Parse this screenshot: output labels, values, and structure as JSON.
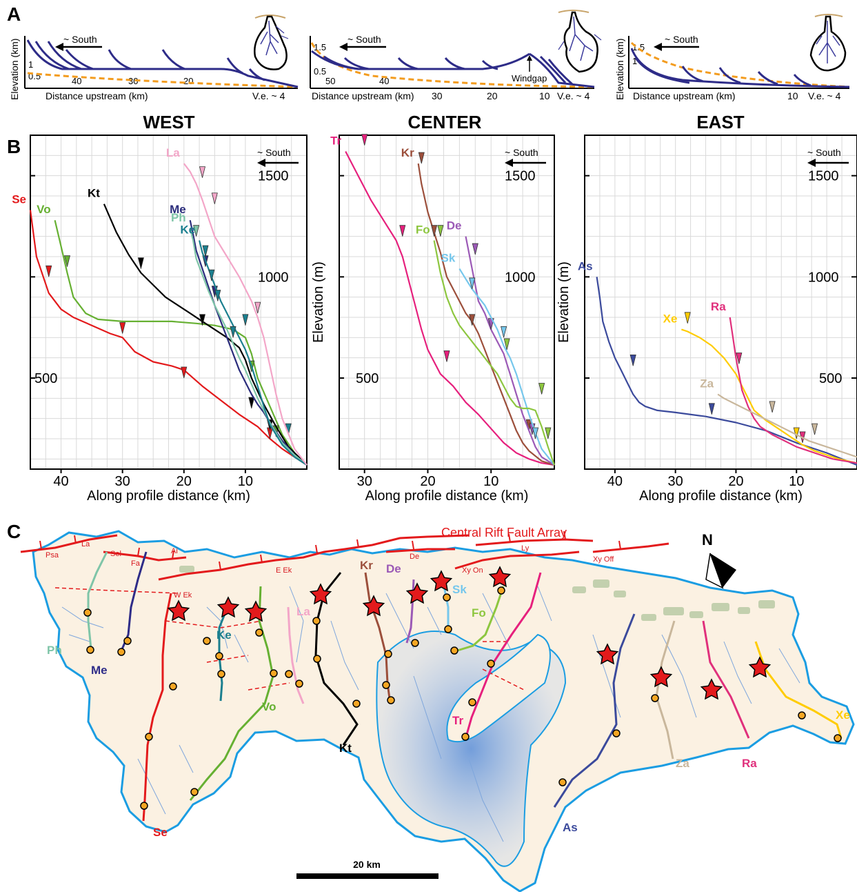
{
  "panel_labels": [
    "A",
    "B",
    "C"
  ],
  "panel_a": [
    {
      "direction_label": "~ South",
      "xlabel": "Distance upstream (km)",
      "ylabel": "Elevation (km)",
      "ve_label": "V.e. ~ 4",
      "x_ticks": [
        "40",
        "30",
        "20"
      ],
      "y_ticks": [
        "0.5",
        "1"
      ],
      "annotation": ""
    },
    {
      "direction_label": "~ South",
      "xlabel": "Distance upstream (km)",
      "ylabel": "",
      "ve_label": "V.e. ~ 4",
      "x_ticks": [
        "50",
        "40",
        "30",
        "20",
        "10"
      ],
      "y_ticks": [
        "0.5",
        "1.5"
      ],
      "annotation": "Windgap"
    },
    {
      "direction_label": "~ South",
      "xlabel": "Distance upstream (km)",
      "ylabel": "Elevation (km)",
      "ve_label": "V.e. ~ 4",
      "x_ticks": [
        "10"
      ],
      "y_ticks": [
        "1",
        "1.5"
      ],
      "annotation": ""
    }
  ],
  "chart_data": [
    {
      "type": "line",
      "title": "WEST",
      "xlabel": "Along profile distance (km)",
      "ylabel": "",
      "xlim": [
        45,
        0
      ],
      "ylim": [
        50,
        1700
      ],
      "x_ticks": [
        40,
        30,
        20,
        10
      ],
      "y_ticks": [
        500,
        1000,
        1500
      ],
      "direction_label": "~ South",
      "series": [
        {
          "name": "Se",
          "color": "#e31a1c",
          "x": [
            45,
            44,
            42,
            40,
            38,
            35,
            32,
            30,
            28,
            25,
            22,
            20,
            17,
            14,
            11,
            8,
            6,
            4,
            2,
            0
          ],
          "y": [
            1330,
            1100,
            920,
            840,
            800,
            760,
            720,
            700,
            630,
            580,
            560,
            540,
            460,
            390,
            320,
            260,
            200,
            150,
            110,
            70
          ],
          "markers": [
            [
              42,
              1000
            ],
            [
              30,
              720
            ],
            [
              20,
              500
            ],
            [
              6,
              200
            ]
          ]
        },
        {
          "name": "Vo",
          "color": "#66b032",
          "x": [
            41,
            40,
            39,
            38,
            36,
            34,
            30,
            26,
            22,
            18,
            15,
            12,
            10,
            9,
            8,
            6,
            4,
            2,
            0
          ],
          "y": [
            1280,
            1150,
            1020,
            900,
            820,
            790,
            780,
            780,
            780,
            770,
            760,
            740,
            700,
            620,
            500,
            360,
            220,
            130,
            70
          ],
          "markers": [
            [
              39,
              1050
            ],
            [
              9,
              530
            ],
            [
              5,
              210
            ]
          ]
        },
        {
          "name": "Kt",
          "color": "#000000",
          "x": [
            33,
            31,
            29,
            27,
            25,
            23,
            21,
            19,
            17,
            15,
            13,
            11,
            10,
            9,
            7,
            5,
            3,
            0
          ],
          "y": [
            1360,
            1220,
            1110,
            1020,
            960,
            900,
            860,
            820,
            780,
            740,
            700,
            650,
            590,
            500,
            370,
            260,
            160,
            70
          ],
          "markers": [
            [
              27,
              1040
            ],
            [
              17,
              760
            ],
            [
              9,
              350
            ],
            [
              6,
              240
            ]
          ]
        },
        {
          "name": "Me",
          "color": "#2b2d7c",
          "x": [
            19,
            18.5,
            18,
            17,
            16,
            15,
            14,
            13,
            12,
            11,
            10,
            9,
            8,
            7,
            6,
            4,
            2,
            0
          ],
          "y": [
            1280,
            1210,
            1130,
            1040,
            950,
            860,
            780,
            700,
            620,
            540,
            480,
            420,
            370,
            330,
            280,
            190,
            120,
            70
          ],
          "markers": [
            [
              16.5,
              1050
            ],
            [
              15,
              900
            ]
          ]
        },
        {
          "name": "Ph",
          "color": "#7fc5a8",
          "x": [
            19,
            18.5,
            18,
            17,
            16,
            15,
            14,
            13,
            12,
            11,
            10,
            9,
            8,
            7,
            6,
            4,
            2,
            0
          ],
          "y": [
            1240,
            1180,
            1090,
            1010,
            930,
            860,
            800,
            740,
            670,
            600,
            540,
            470,
            400,
            340,
            280,
            180,
            120,
            70
          ],
          "markers": [
            [
              18,
              1200
            ]
          ]
        },
        {
          "name": "Ke",
          "color": "#1b7f8f",
          "x": [
            17.5,
            17,
            16,
            15,
            14,
            13,
            12,
            11,
            10,
            9,
            8,
            7,
            6,
            4,
            2,
            0
          ],
          "y": [
            1180,
            1120,
            1040,
            960,
            880,
            820,
            760,
            700,
            640,
            560,
            460,
            360,
            270,
            170,
            110,
            70
          ],
          "markers": [
            [
              16.5,
              1100
            ],
            [
              15.5,
              980
            ],
            [
              14.5,
              880
            ],
            [
              12,
              700
            ],
            [
              10,
              760
            ],
            [
              3,
              220
            ]
          ]
        },
        {
          "name": "La",
          "color": "#f3a6c8",
          "x": [
            20,
            19,
            18,
            17,
            15,
            13,
            11,
            10,
            9,
            8,
            7,
            6,
            5,
            4,
            2,
            0
          ],
          "y": [
            1560,
            1520,
            1460,
            1380,
            1200,
            1100,
            1000,
            940,
            880,
            800,
            700,
            560,
            420,
            300,
            150,
            70
          ],
          "markers": [
            [
              17,
              1490
            ],
            [
              15,
              1360
            ],
            [
              8,
              820
            ]
          ]
        }
      ]
    },
    {
      "type": "line",
      "title": "CENTER",
      "xlabel": "Along profile distance (km)",
      "ylabel": "Elevation (m)",
      "xlim": [
        34,
        0
      ],
      "ylim": [
        50,
        1700
      ],
      "x_ticks": [
        30,
        20,
        10
      ],
      "y_ticks": [
        500,
        1000,
        1500
      ],
      "direction_label": "~ South",
      "series": [
        {
          "name": "Tr",
          "color": "#e6207d",
          "x": [
            33,
            31,
            29,
            27,
            25,
            24,
            23,
            22,
            21,
            20,
            19,
            18,
            16,
            14,
            12,
            10,
            8,
            6,
            4,
            2,
            0
          ],
          "y": [
            1620,
            1500,
            1380,
            1280,
            1180,
            1100,
            980,
            860,
            740,
            640,
            580,
            520,
            460,
            380,
            320,
            250,
            180,
            130,
            100,
            80,
            70
          ],
          "markers": [
            [
              30,
              1650
            ],
            [
              24,
              1200
            ],
            [
              17,
              580
            ]
          ]
        },
        {
          "name": "Kr",
          "color": "#9c4f3b",
          "x": [
            21.5,
            21,
            20,
            19,
            18,
            17,
            16,
            15,
            14,
            13,
            12,
            11,
            10,
            9,
            8,
            7,
            6,
            5,
            4,
            2,
            0
          ],
          "y": [
            1560,
            1460,
            1320,
            1220,
            1120,
            1000,
            940,
            880,
            820,
            780,
            720,
            640,
            560,
            480,
            400,
            320,
            240,
            180,
            140,
            90,
            70
          ],
          "markers": [
            [
              21,
              1560
            ],
            [
              19,
              1200
            ],
            [
              13,
              760
            ],
            [
              4,
              240
            ]
          ]
        },
        {
          "name": "De",
          "color": "#9b59b6",
          "x": [
            14,
            13.5,
            13,
            12.5,
            12,
            11,
            10,
            9,
            8,
            7,
            6,
            5,
            4,
            3,
            2,
            0
          ],
          "y": [
            1200,
            1120,
            1040,
            960,
            880,
            820,
            740,
            680,
            620,
            520,
            420,
            320,
            240,
            160,
            110,
            70
          ],
          "markers": [
            [
              12.5,
              1110
            ],
            [
              10,
              740
            ],
            [
              3.5,
              220
            ]
          ]
        },
        {
          "name": "Sk",
          "color": "#76c7ec",
          "x": [
            15,
            14,
            13,
            12,
            11,
            10,
            9,
            8,
            7,
            6,
            5,
            4,
            3,
            2,
            0
          ],
          "y": [
            1040,
            990,
            940,
            900,
            860,
            800,
            740,
            660,
            600,
            520,
            420,
            320,
            230,
            150,
            70
          ],
          "markers": [
            [
              13,
              940
            ],
            [
              8,
              700
            ],
            [
              3,
              200
            ]
          ]
        },
        {
          "name": "Fo",
          "color": "#8dc63f",
          "x": [
            19,
            18,
            17,
            16,
            15,
            14,
            13,
            12,
            11,
            10,
            9,
            8,
            7,
            6,
            5,
            4,
            3,
            2,
            1,
            0
          ],
          "y": [
            1180,
            1020,
            900,
            820,
            760,
            720,
            680,
            640,
            600,
            560,
            520,
            460,
            400,
            360,
            350,
            350,
            340,
            260,
            160,
            70
          ],
          "markers": [
            [
              18,
              1200
            ],
            [
              7.5,
              640
            ],
            [
              2,
              420
            ],
            [
              1,
              200
            ]
          ]
        }
      ]
    },
    {
      "type": "line",
      "title": "EAST",
      "xlabel": "Along profile distance (km)",
      "ylabel": "Elevation (m)",
      "xlim": [
        45,
        0
      ],
      "ylim": [
        50,
        1700
      ],
      "x_ticks": [
        40,
        30,
        20,
        10
      ],
      "y_ticks": [
        500,
        1000,
        1500
      ],
      "direction_label": "~ South",
      "series": [
        {
          "name": "As",
          "color": "#3b4a9c",
          "x": [
            43,
            42.5,
            42,
            41,
            40,
            39,
            38,
            37,
            36,
            35,
            33,
            30,
            25,
            20,
            15,
            10,
            5,
            0
          ],
          "y": [
            1000,
            900,
            780,
            680,
            600,
            540,
            480,
            420,
            380,
            360,
            340,
            330,
            310,
            280,
            240,
            180,
            130,
            70
          ],
          "markers": [
            [
              37,
              560
            ],
            [
              24,
              320
            ]
          ]
        },
        {
          "name": "Xe",
          "color": "#ffcc00",
          "x": [
            29,
            28,
            26,
            24,
            22,
            21,
            20,
            19,
            18,
            17,
            15,
            13,
            11,
            9,
            7,
            5,
            3,
            0
          ],
          "y": [
            740,
            730,
            700,
            660,
            600,
            560,
            520,
            460,
            400,
            340,
            290,
            250,
            210,
            170,
            140,
            120,
            100,
            80
          ],
          "markers": [
            [
              28,
              770
            ],
            [
              10,
              200
            ]
          ]
        },
        {
          "name": "Ra",
          "color": "#e0307c",
          "x": [
            21,
            20.5,
            20,
            19.5,
            19,
            18,
            17,
            16,
            14,
            12,
            10,
            8,
            6,
            4,
            2,
            0
          ],
          "y": [
            800,
            700,
            600,
            520,
            440,
            360,
            300,
            260,
            220,
            190,
            160,
            140,
            120,
            100,
            90,
            80
          ],
          "markers": [
            [
              19.5,
              570
            ],
            [
              9,
              180
            ]
          ]
        },
        {
          "name": "Za",
          "color": "#c9b79c",
          "x": [
            23,
            22,
            20,
            18,
            16,
            14,
            12,
            10,
            8,
            6,
            4,
            2,
            0
          ],
          "y": [
            420,
            400,
            370,
            340,
            310,
            280,
            250,
            220,
            190,
            170,
            150,
            130,
            110
          ],
          "markers": [
            [
              14,
              330
            ],
            [
              7,
              220
            ]
          ]
        }
      ]
    }
  ],
  "panel_c": {
    "fault_label": "Central Rift Fault Array",
    "fault_segments": [
      "Psa",
      "La",
      "Sel",
      "Fa",
      "Ai",
      "W Ek",
      "E Ek",
      "De",
      "Xy On",
      "Ly",
      "Xy Off"
    ],
    "river_labels": [
      "Ph",
      "Me",
      "Ke",
      "La",
      "Vo",
      "Kt",
      "Kr",
      "De",
      "Sk",
      "Fo",
      "Tr",
      "As",
      "Za",
      "Ra",
      "Xe",
      "Se"
    ],
    "scalebar_label": "20 km",
    "north_label": "N"
  }
}
